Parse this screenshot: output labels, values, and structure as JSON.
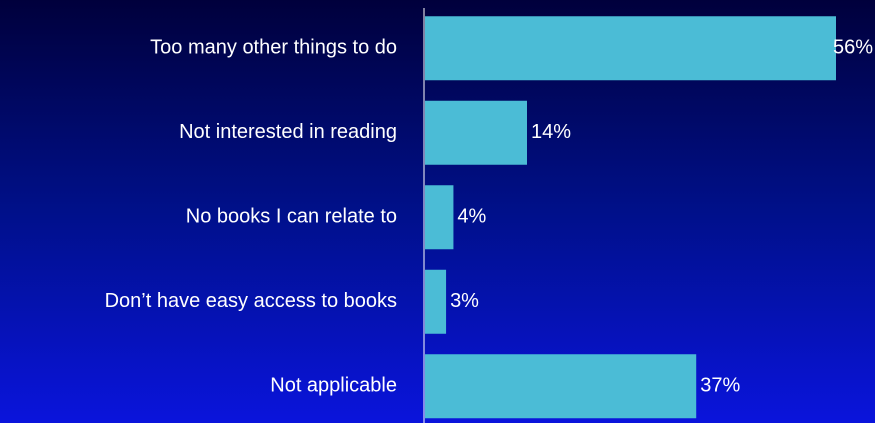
{
  "chart_data": {
    "type": "bar",
    "orientation": "horizontal",
    "categories": [
      "Too many other things to do",
      "Not interested in reading",
      "No books I can relate to",
      "Don’t have easy access to books",
      "Not applicable"
    ],
    "values": [
      56,
      14,
      4,
      3,
      37
    ],
    "value_labels": [
      "56%",
      "14%",
      "4%",
      "3%",
      "37%"
    ],
    "color": "#4bbcd6"
  }
}
